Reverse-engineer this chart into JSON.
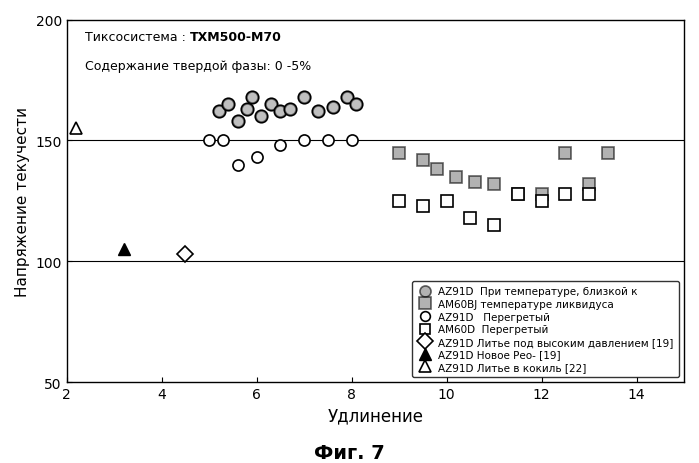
{
  "xlabel": "Удлинение",
  "ylabel": "Напряжение текучести",
  "fig_label": "Фиг. 7",
  "xlim": [
    2,
    15
  ],
  "ylim": [
    50,
    200
  ],
  "xticks": [
    2,
    4,
    6,
    8,
    10,
    12,
    14
  ],
  "yticks": [
    50,
    100,
    150,
    200
  ],
  "hlines": [
    100,
    150
  ],
  "AZ91D_near_liquidus_x": [
    5.2,
    5.4,
    5.6,
    5.8,
    5.9,
    6.1,
    6.3,
    6.5,
    6.7,
    7.0,
    7.3,
    7.6,
    7.9,
    8.1
  ],
  "AZ91D_near_liquidus_y": [
    162,
    165,
    158,
    163,
    168,
    160,
    165,
    162,
    163,
    168,
    162,
    164,
    168,
    165
  ],
  "AM60B_near_liquidus_x": [
    9.0,
    9.5,
    9.8,
    10.2,
    10.6,
    11.0,
    11.5,
    12.0,
    12.5,
    13.0,
    13.4
  ],
  "AM60B_near_liquidus_y": [
    145,
    142,
    138,
    135,
    133,
    132,
    128,
    128,
    145,
    132,
    145
  ],
  "AZ91D_superheated_x": [
    5.0,
    5.3,
    5.6,
    6.0,
    6.5,
    7.0,
    7.5,
    8.0
  ],
  "AZ91D_superheated_y": [
    150,
    150,
    140,
    143,
    148,
    150,
    150,
    150
  ],
  "AM60D_superheated_x": [
    9.0,
    9.5,
    10.0,
    10.5,
    11.0,
    11.5,
    12.0,
    12.5,
    13.0
  ],
  "AM60D_superheated_y": [
    125,
    123,
    125,
    118,
    115,
    128,
    125,
    128,
    128
  ],
  "AZ91D_hpdc_x": [
    4.5
  ],
  "AZ91D_hpdc_y": [
    103
  ],
  "AZ91D_rheo_x": [
    3.2
  ],
  "AZ91D_rheo_y": [
    105
  ],
  "AZ91D_gravity_x": [
    2.2
  ],
  "AZ91D_gravity_y": [
    155
  ],
  "annotation_line1_plain": "Тиксосистема : ",
  "annotation_line1_bold": "TXM500-M70",
  "annotation_line2": "Содержание твердой фазы: 0 -5%",
  "legend_labels": [
    "AZ91D  При температуре, близкой к",
    "AM60BJ температуре ликвидуса",
    "AZ91D   Перегретый",
    "AM60D  Перегретый",
    "AZ91D Литье под высоким давлением [19]",
    "AZ91D Новое Рео- [19]",
    "AZ91D Литье в кокиль [22]"
  ]
}
